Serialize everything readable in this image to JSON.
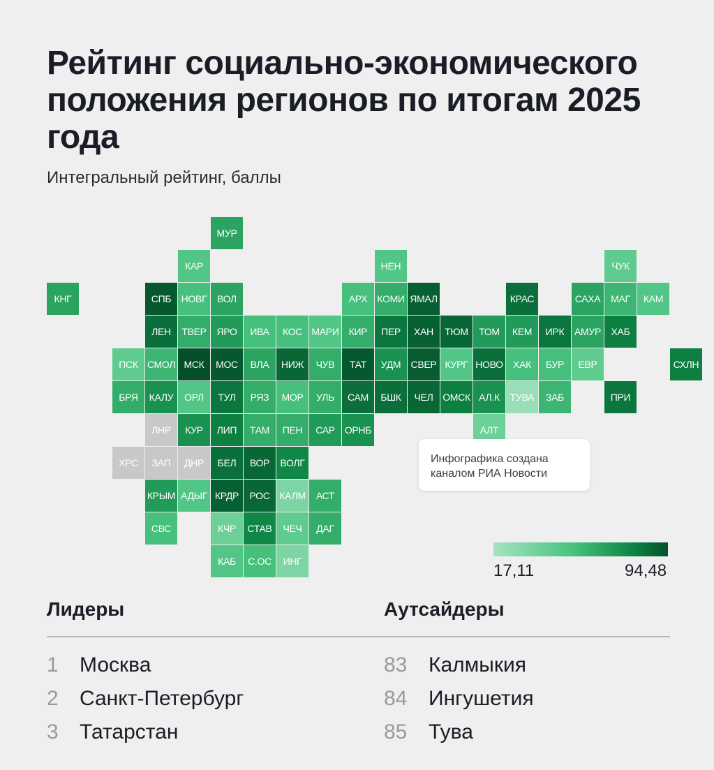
{
  "title": "Рейтинг социально-экономического положения регионов по итогам 2025 года",
  "subtitle": "Интегральный рейтинг, баллы",
  "note": "Инфографика создана каналом РИА Новости",
  "scale": {
    "min_label": "17,11",
    "max_label": "94,48",
    "colors": [
      "#a6e3c0",
      "#49c37f",
      "#0d8444",
      "#05502a"
    ]
  },
  "leaders": {
    "heading": "Лидеры",
    "items": [
      {
        "rank": "1",
        "name": "Москва"
      },
      {
        "rank": "2",
        "name": "Санкт-Петербург"
      },
      {
        "rank": "3",
        "name": "Татарстан"
      }
    ]
  },
  "outsiders": {
    "heading": "Аутсайдеры",
    "items": [
      {
        "rank": "83",
        "name": "Калмыкия"
      },
      {
        "rank": "84",
        "name": "Ингушетия"
      },
      {
        "rank": "85",
        "name": "Тува"
      }
    ]
  },
  "chart_data": {
    "type": "heatmap",
    "no_data_color": "#c8c8c8",
    "regions": [
      {
        "label": "МУР",
        "col": 5,
        "row": 0,
        "level": 0.5
      },
      {
        "label": "КАР",
        "col": 4,
        "row": 1,
        "level": 0.3
      },
      {
        "label": "НЕН",
        "col": 10,
        "row": 1,
        "level": 0.3
      },
      {
        "label": "ЧУК",
        "col": 17,
        "row": 1,
        "level": 0.25
      },
      {
        "label": "КНГ",
        "col": 0,
        "row": 2,
        "level": 0.5
      },
      {
        "label": "СПБ",
        "col": 3,
        "row": 2,
        "level": 0.95
      },
      {
        "label": "НОВГ",
        "col": 4,
        "row": 2,
        "level": 0.35
      },
      {
        "label": "ВОЛ",
        "col": 5,
        "row": 2,
        "level": 0.5
      },
      {
        "label": "АРХ",
        "col": 9,
        "row": 2,
        "level": 0.35
      },
      {
        "label": "КОМИ",
        "col": 10,
        "row": 2,
        "level": 0.45
      },
      {
        "label": "ЯМАЛ",
        "col": 11,
        "row": 2,
        "level": 0.9
      },
      {
        "label": "КРАС",
        "col": 14,
        "row": 2,
        "level": 0.8
      },
      {
        "label": "САХА",
        "col": 16,
        "row": 2,
        "level": 0.5
      },
      {
        "label": "МАГ",
        "col": 17,
        "row": 2,
        "level": 0.4
      },
      {
        "label": "КАМ",
        "col": 18,
        "row": 2,
        "level": 0.3
      },
      {
        "label": "ЛЕН",
        "col": 3,
        "row": 3,
        "level": 0.8
      },
      {
        "label": "ТВЕР",
        "col": 4,
        "row": 3,
        "level": 0.45
      },
      {
        "label": "ЯРО",
        "col": 5,
        "row": 3,
        "level": 0.55
      },
      {
        "label": "ИВА",
        "col": 6,
        "row": 3,
        "level": 0.35
      },
      {
        "label": "КОС",
        "col": 7,
        "row": 3,
        "level": 0.35
      },
      {
        "label": "МАРИ",
        "col": 8,
        "row": 3,
        "level": 0.3
      },
      {
        "label": "КИР",
        "col": 9,
        "row": 3,
        "level": 0.45
      },
      {
        "label": "ПЕР",
        "col": 10,
        "row": 3,
        "level": 0.75
      },
      {
        "label": "ХАН",
        "col": 11,
        "row": 3,
        "level": 0.9
      },
      {
        "label": "ТЮМ",
        "col": 12,
        "row": 3,
        "level": 0.85
      },
      {
        "label": "ТОМ",
        "col": 13,
        "row": 3,
        "level": 0.55
      },
      {
        "label": "КЕМ",
        "col": 14,
        "row": 3,
        "level": 0.55
      },
      {
        "label": "ИРК",
        "col": 15,
        "row": 3,
        "level": 0.75
      },
      {
        "label": "АМУР",
        "col": 16,
        "row": 3,
        "level": 0.5
      },
      {
        "label": "ХАБ",
        "col": 17,
        "row": 3,
        "level": 0.7
      },
      {
        "label": "ПСК",
        "col": 2,
        "row": 4,
        "level": 0.25
      },
      {
        "label": "СМОЛ",
        "col": 3,
        "row": 4,
        "level": 0.4
      },
      {
        "label": "МСК",
        "col": 4,
        "row": 4,
        "level": 1.0
      },
      {
        "label": "МОС",
        "col": 5,
        "row": 4,
        "level": 0.95
      },
      {
        "label": "ВЛА",
        "col": 6,
        "row": 4,
        "level": 0.5
      },
      {
        "label": "НИЖ",
        "col": 7,
        "row": 4,
        "level": 0.85
      },
      {
        "label": "ЧУВ",
        "col": 8,
        "row": 4,
        "level": 0.45
      },
      {
        "label": "ТАТ",
        "col": 9,
        "row": 4,
        "level": 0.95
      },
      {
        "label": "УДМ",
        "col": 10,
        "row": 4,
        "level": 0.6
      },
      {
        "label": "СВЕР",
        "col": 11,
        "row": 4,
        "level": 0.92
      },
      {
        "label": "КУРГ",
        "col": 12,
        "row": 4,
        "level": 0.3
      },
      {
        "label": "НОВО",
        "col": 13,
        "row": 4,
        "level": 0.8
      },
      {
        "label": "ХАК",
        "col": 14,
        "row": 4,
        "level": 0.35
      },
      {
        "label": "БУР",
        "col": 15,
        "row": 4,
        "level": 0.35
      },
      {
        "label": "ЕВР",
        "col": 16,
        "row": 4,
        "level": 0.25
      },
      {
        "label": "СХЛН",
        "col": 19,
        "row": 4,
        "level": 0.7
      },
      {
        "label": "БРЯ",
        "col": 2,
        "row": 5,
        "level": 0.45
      },
      {
        "label": "КАЛУ",
        "col": 3,
        "row": 5,
        "level": 0.6
      },
      {
        "label": "ОРЛ",
        "col": 4,
        "row": 5,
        "level": 0.3
      },
      {
        "label": "ТУЛ",
        "col": 5,
        "row": 5,
        "level": 0.75
      },
      {
        "label": "РЯЗ",
        "col": 6,
        "row": 5,
        "level": 0.45
      },
      {
        "label": "МОР",
        "col": 7,
        "row": 5,
        "level": 0.35
      },
      {
        "label": "УЛЬ",
        "col": 8,
        "row": 5,
        "level": 0.45
      },
      {
        "label": "САМ",
        "col": 9,
        "row": 5,
        "level": 0.8
      },
      {
        "label": "БШК",
        "col": 10,
        "row": 5,
        "level": 0.8
      },
      {
        "label": "ЧЕЛ",
        "col": 11,
        "row": 5,
        "level": 0.85
      },
      {
        "label": "ОМСК",
        "col": 12,
        "row": 5,
        "level": 0.7
      },
      {
        "label": "АЛ.К",
        "col": 13,
        "row": 5,
        "level": 0.6
      },
      {
        "label": "ТУВА",
        "col": 14,
        "row": 5,
        "level": 0.05
      },
      {
        "label": "ЗАБ",
        "col": 15,
        "row": 5,
        "level": 0.4
      },
      {
        "label": "ПРИ",
        "col": 17,
        "row": 5,
        "level": 0.75
      },
      {
        "label": "ЛНР",
        "col": 3,
        "row": 6,
        "level": null
      },
      {
        "label": "КУР",
        "col": 4,
        "row": 6,
        "level": 0.6
      },
      {
        "label": "ЛИП",
        "col": 5,
        "row": 6,
        "level": 0.7
      },
      {
        "label": "ТАМ",
        "col": 6,
        "row": 6,
        "level": 0.45
      },
      {
        "label": "ПЕН",
        "col": 7,
        "row": 6,
        "level": 0.45
      },
      {
        "label": "САР",
        "col": 8,
        "row": 6,
        "level": 0.55
      },
      {
        "label": "ОРНБ",
        "col": 9,
        "row": 6,
        "level": 0.6
      },
      {
        "label": "АЛТ",
        "col": 13,
        "row": 6,
        "level": 0.2
      },
      {
        "label": "ХРС",
        "col": 2,
        "row": 7,
        "level": null
      },
      {
        "label": "ЗАП",
        "col": 3,
        "row": 7,
        "level": null
      },
      {
        "label": "ДНР",
        "col": 4,
        "row": 7,
        "level": null
      },
      {
        "label": "БЕЛ",
        "col": 5,
        "row": 7,
        "level": 0.8
      },
      {
        "label": "ВОР",
        "col": 6,
        "row": 7,
        "level": 0.85
      },
      {
        "label": "ВОЛГ",
        "col": 7,
        "row": 7,
        "level": 0.65
      },
      {
        "label": "КРЫМ",
        "col": 3,
        "row": 8,
        "level": 0.55
      },
      {
        "label": "АДЫГ",
        "col": 4,
        "row": 8,
        "level": 0.3
      },
      {
        "label": "КРДР",
        "col": 5,
        "row": 8,
        "level": 0.9
      },
      {
        "label": "РОС",
        "col": 6,
        "row": 8,
        "level": 0.85
      },
      {
        "label": "КАЛМ",
        "col": 7,
        "row": 8,
        "level": 0.15
      },
      {
        "label": "АСТ",
        "col": 8,
        "row": 8,
        "level": 0.45
      },
      {
        "label": "СВС",
        "col": 3,
        "row": 9,
        "level": 0.35
      },
      {
        "label": "КЧР",
        "col": 5,
        "row": 9,
        "level": 0.2
      },
      {
        "label": "СТАВ",
        "col": 6,
        "row": 9,
        "level": 0.65
      },
      {
        "label": "ЧЕЧ",
        "col": 7,
        "row": 9,
        "level": 0.25
      },
      {
        "label": "ДАГ",
        "col": 8,
        "row": 9,
        "level": 0.45
      },
      {
        "label": "КАБ",
        "col": 5,
        "row": 10,
        "level": 0.3
      },
      {
        "label": "С.ОС",
        "col": 6,
        "row": 10,
        "level": 0.35
      },
      {
        "label": "ИНГ",
        "col": 7,
        "row": 10,
        "level": 0.15
      }
    ]
  }
}
